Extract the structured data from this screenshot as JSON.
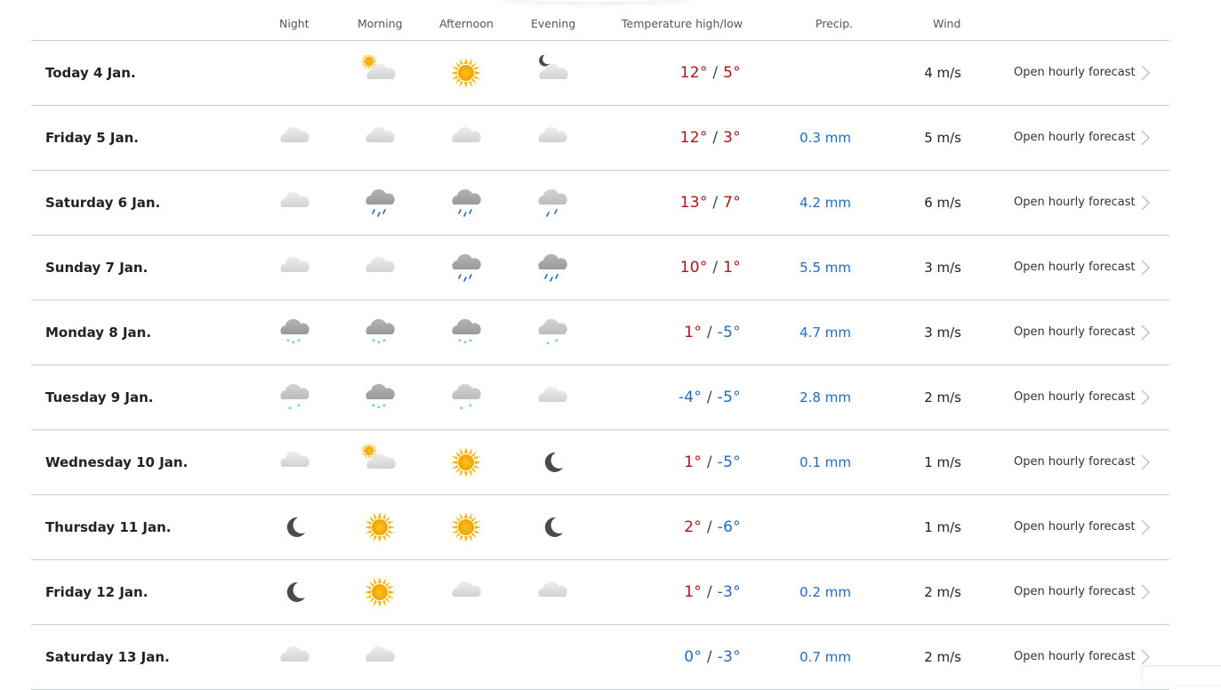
{
  "headers": {
    "night": "Night",
    "morning": "Morning",
    "afternoon": "Afternoon",
    "evening": "Evening",
    "temperature": "Temperature high/low",
    "precip": "Precip.",
    "wind": "Wind"
  },
  "link_label": "Open hourly forecast",
  "colors": {
    "warm": "#b0121b",
    "cold": "#1f6bbf",
    "precip": "#1f6bbf"
  },
  "rows": [
    {
      "day": "Today 4 Jan.",
      "icons": [
        "",
        "partly-sunny",
        "sun",
        "moon-cloud"
      ],
      "high": "12°",
      "low": "5°",
      "precip": "",
      "wind": "4 m/s"
    },
    {
      "day": "Friday 5 Jan.",
      "icons": [
        "cloud",
        "cloud",
        "cloud",
        "cloud"
      ],
      "high": "12°",
      "low": "3°",
      "precip": "0.3 mm",
      "wind": "5 m/s"
    },
    {
      "day": "Saturday 6 Jan.",
      "icons": [
        "cloud",
        "rain",
        "rain",
        "light-rain"
      ],
      "high": "13°",
      "low": "7°",
      "precip": "4.2 mm",
      "wind": "6 m/s"
    },
    {
      "day": "Sunday 7 Jan.",
      "icons": [
        "cloud",
        "cloud",
        "rain",
        "rain"
      ],
      "high": "10°",
      "low": "1°",
      "precip": "5.5 mm",
      "wind": "3 m/s"
    },
    {
      "day": "Monday 8 Jan.",
      "icons": [
        "snow",
        "snow",
        "snow",
        "light-snow"
      ],
      "high": "1°",
      "low": "-5°",
      "precip": "4.7 mm",
      "wind": "3 m/s"
    },
    {
      "day": "Tuesday 9 Jan.",
      "icons": [
        "light-snow",
        "snow",
        "light-snow",
        "cloud"
      ],
      "high": "-4°",
      "low": "-5°",
      "precip": "2.8 mm",
      "wind": "2 m/s"
    },
    {
      "day": "Wednesday 10 Jan.",
      "icons": [
        "cloud",
        "partly-sunny",
        "sun",
        "moon"
      ],
      "high": "1°",
      "low": "-5°",
      "precip": "0.1 mm",
      "wind": "1 m/s"
    },
    {
      "day": "Thursday 11 Jan.",
      "icons": [
        "moon",
        "sun",
        "sun",
        "moon"
      ],
      "high": "2°",
      "low": "-6°",
      "precip": "",
      "wind": "1 m/s"
    },
    {
      "day": "Friday 12 Jan.",
      "icons": [
        "moon",
        "sun",
        "cloud",
        "cloud"
      ],
      "high": "1°",
      "low": "-3°",
      "precip": "0.2 mm",
      "wind": "2 m/s"
    },
    {
      "day": "Saturday 13 Jan.",
      "icons": [
        "cloud",
        "cloud",
        "",
        ""
      ],
      "high": "0°",
      "low": "-3°",
      "precip": "0.7 mm",
      "wind": "2 m/s"
    }
  ]
}
